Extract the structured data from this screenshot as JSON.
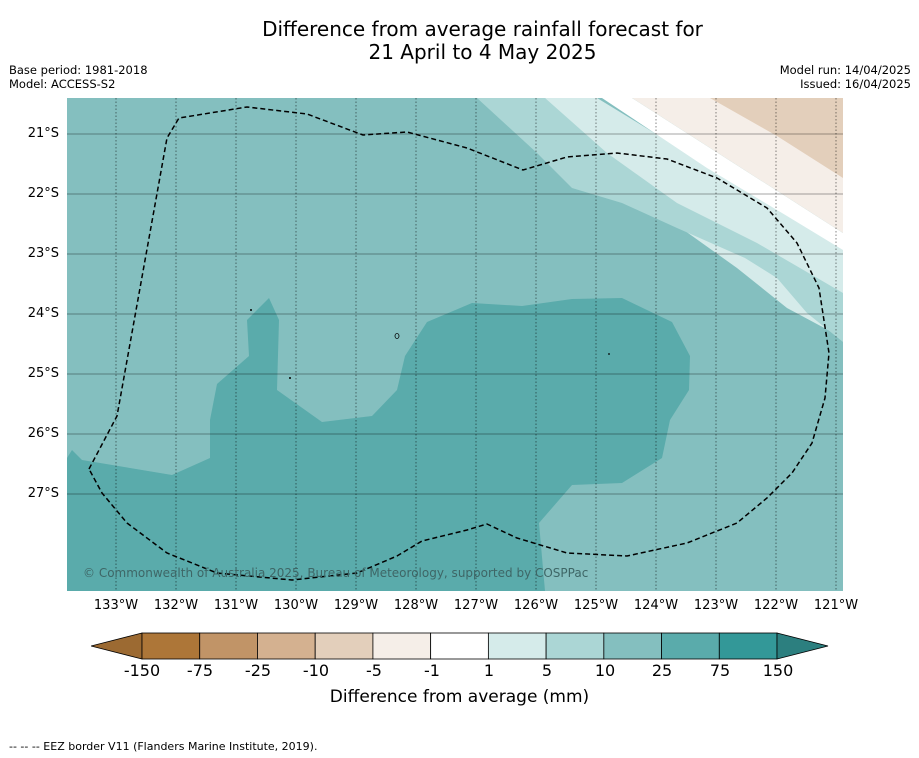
{
  "header": {
    "title_line1": "Difference from average rainfall forecast for",
    "title_line2": "21 April to 4 May 2025",
    "base_period": "Base period: 1981-2018",
    "model": "Model: ACCESS-S2",
    "model_run": "Model run: 14/04/2025",
    "issued": "Issued: 16/04/2025"
  },
  "map": {
    "latitudes": [
      "21°S",
      "22°S",
      "23°S",
      "24°S",
      "25°S",
      "26°S",
      "27°S"
    ],
    "longitudes": [
      "133°W",
      "132°W",
      "131°W",
      "130°W",
      "129°W",
      "128°W",
      "127°W",
      "126°W",
      "125°W",
      "124°W",
      "123°W",
      "122°W",
      "121°W"
    ],
    "copyright": "© Commonwealth of Australia 2025, Bureau of Meteorology, supported by COSPPac"
  },
  "colorbar": {
    "ticks": [
      "-150",
      "-75",
      "-25",
      "-10",
      "-5",
      "-1",
      "1",
      "5",
      "10",
      "25",
      "75",
      "150"
    ],
    "colors": [
      "#ad7638",
      "#c19467",
      "#d4b190",
      "#e3cfbb",
      "#f5eee8",
      "#ffffff",
      "#d5ebea",
      "#abd6d5",
      "#84bfbf",
      "#5aabab",
      "#339898"
    ],
    "under_color": "#9c6a32",
    "over_color": "#2c7f7f",
    "title": "Difference from average (mm)"
  },
  "footer": {
    "eez_note": "--  --  -- EEZ border V11 (Flanders Marine Institute, 2019)."
  }
}
